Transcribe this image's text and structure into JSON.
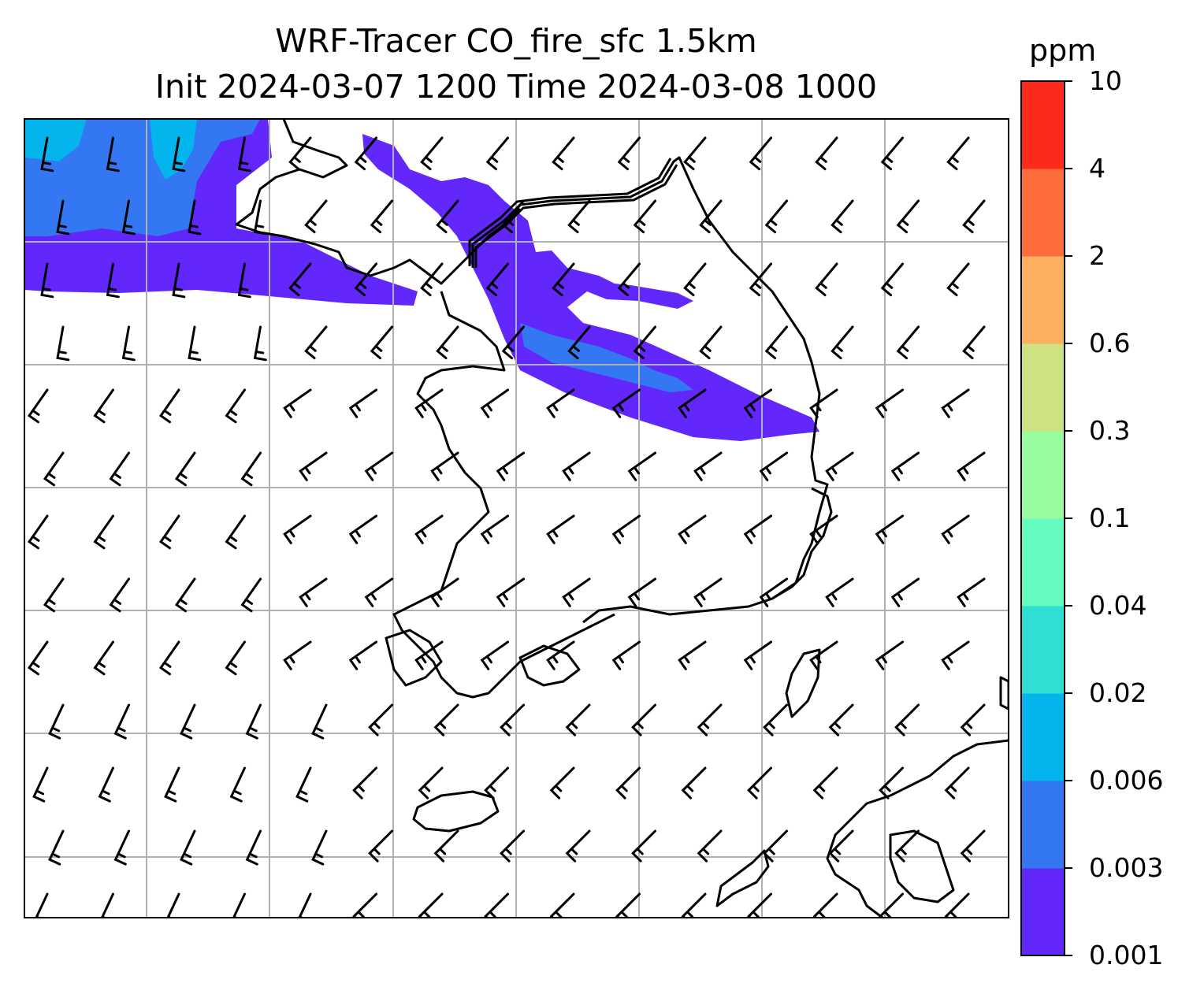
{
  "title": {
    "line1": "WRF-Tracer CO_fire_sfc 1.5km",
    "line2": "Init 2024-03-07 1200 Time 2024-03-08 1000"
  },
  "colorbar": {
    "unit": "ppm",
    "ticks": [
      "0.001",
      "0.003",
      "0.006",
      "0.02",
      "0.04",
      "0.1",
      "0.3",
      "0.6",
      "2",
      "4",
      "10"
    ],
    "colors": [
      "#6127fb",
      "#3378f2",
      "#04b5ed",
      "#2fdfd3",
      "#63fbbf",
      "#99fc9e",
      "#cde283",
      "#fcb05f",
      "#fd6d3c",
      "#fb2a1d"
    ]
  },
  "map": {
    "gridlines": true,
    "features": [
      "coastline",
      "wind-barbs",
      "concentration-fill",
      "frame-border"
    ]
  }
}
